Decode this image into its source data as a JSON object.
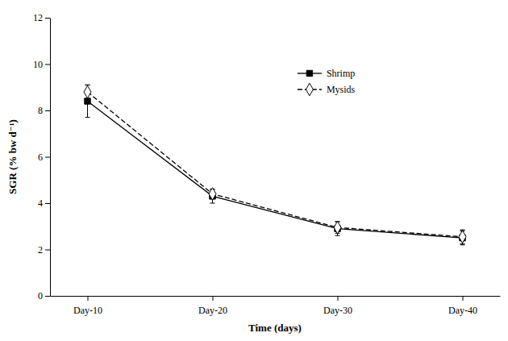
{
  "chart_data": {
    "type": "line",
    "x_label": "Time (days)",
    "y_label": "SGR (% bw d⁻¹)",
    "categories": [
      "Day-10",
      "Day-20",
      "Day-30",
      "Day-40"
    ],
    "series": [
      {
        "name": "Shrimp",
        "color": "#000000",
        "marker": "square",
        "line_style": "solid",
        "values": [
          8.4,
          4.3,
          2.9,
          2.5
        ],
        "errors": [
          0.7,
          0.3,
          0.3,
          0.3
        ]
      },
      {
        "name": "Mysids",
        "color": "#000000",
        "marker": "diamond-open",
        "line_style": "dashed",
        "values": [
          8.8,
          4.4,
          2.95,
          2.55
        ],
        "errors": [
          0.3,
          0.2,
          0.25,
          0.3
        ]
      }
    ],
    "ylim": [
      0,
      12
    ],
    "yticks": [
      0,
      2,
      4,
      6,
      8,
      10,
      12
    ],
    "grid": false,
    "legend": "upper right"
  }
}
